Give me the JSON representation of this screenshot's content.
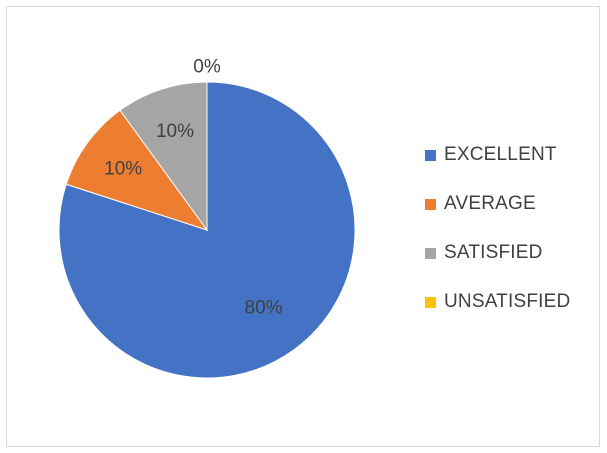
{
  "chart_data": {
    "type": "pie",
    "title": "",
    "categories": [
      "EXCELLENT",
      "AVERAGE",
      "SATISFIED",
      "UNSATISFIED"
    ],
    "values": [
      80,
      10,
      10,
      0
    ],
    "labels": [
      "80%",
      "10%",
      "10%",
      "0%"
    ],
    "colors": [
      "#4472c4",
      "#ed7d31",
      "#a5a5a5",
      "#ffc000"
    ],
    "legend_position": "right",
    "start_angle_deg": 0,
    "direction": "clockwise"
  }
}
